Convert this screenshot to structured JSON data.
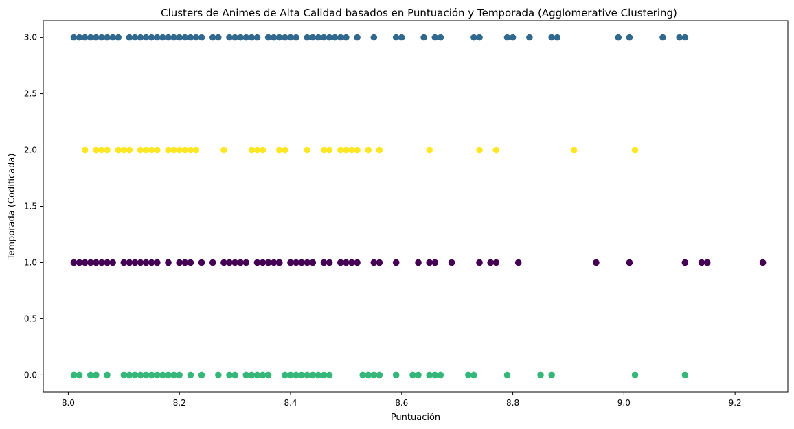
{
  "chart_data": {
    "type": "scatter",
    "title": "Clusters de Animes de Alta Calidad basados en Puntuación y Temporada (Agglomerative Clustering)",
    "xlabel": "Puntuación",
    "ylabel": "Temporada (Codificada)",
    "xlim": [
      7.955,
      9.295
    ],
    "ylim": [
      -0.15,
      3.15
    ],
    "xticks": [
      "8.0",
      "8.2",
      "8.4",
      "8.6",
      "8.8",
      "9.0",
      "9.2"
    ],
    "yticks": [
      "0.0",
      "0.5",
      "1.0",
      "1.5",
      "2.0",
      "2.5",
      "3.0"
    ],
    "grid": false,
    "legend": "none",
    "series": [
      {
        "color": "#31688e",
        "y": 3.0,
        "x": [
          8.01,
          8.02,
          8.03,
          8.04,
          8.05,
          8.06,
          8.07,
          8.08,
          8.09,
          8.11,
          8.12,
          8.13,
          8.14,
          8.15,
          8.16,
          8.17,
          8.18,
          8.19,
          8.2,
          8.21,
          8.22,
          8.23,
          8.24,
          8.26,
          8.27,
          8.29,
          8.3,
          8.31,
          8.32,
          8.33,
          8.34,
          8.36,
          8.37,
          8.38,
          8.39,
          8.4,
          8.41,
          8.43,
          8.44,
          8.45,
          8.46,
          8.47,
          8.48,
          8.49,
          8.5,
          8.52,
          8.55,
          8.59,
          8.6,
          8.64,
          8.66,
          8.67,
          8.73,
          8.74,
          8.79,
          8.8,
          8.83,
          8.87,
          8.88,
          8.99,
          9.01,
          9.07,
          9.1,
          9.11
        ]
      },
      {
        "color": "#fde725",
        "y": 2.0,
        "x": [
          8.03,
          8.05,
          8.06,
          8.07,
          8.09,
          8.1,
          8.11,
          8.13,
          8.14,
          8.15,
          8.16,
          8.18,
          8.19,
          8.2,
          8.21,
          8.22,
          8.23,
          8.28,
          8.33,
          8.34,
          8.35,
          8.38,
          8.39,
          8.43,
          8.46,
          8.47,
          8.49,
          8.5,
          8.51,
          8.52,
          8.54,
          8.56,
          8.65,
          8.74,
          8.77,
          8.91,
          9.02
        ]
      },
      {
        "color": "#440154",
        "y": 1.0,
        "x": [
          8.01,
          8.02,
          8.03,
          8.04,
          8.05,
          8.06,
          8.07,
          8.08,
          8.1,
          8.11,
          8.12,
          8.13,
          8.14,
          8.15,
          8.16,
          8.18,
          8.2,
          8.21,
          8.22,
          8.24,
          8.26,
          8.28,
          8.29,
          8.3,
          8.31,
          8.32,
          8.34,
          8.35,
          8.36,
          8.37,
          8.38,
          8.4,
          8.41,
          8.42,
          8.43,
          8.44,
          8.46,
          8.47,
          8.49,
          8.5,
          8.51,
          8.52,
          8.55,
          8.56,
          8.59,
          8.63,
          8.65,
          8.66,
          8.69,
          8.74,
          8.76,
          8.77,
          8.81,
          8.95,
          9.01,
          9.11,
          9.14,
          9.15,
          9.25
        ]
      },
      {
        "color": "#35b779",
        "y": 0.0,
        "x": [
          8.01,
          8.02,
          8.04,
          8.05,
          8.07,
          8.1,
          8.11,
          8.12,
          8.13,
          8.14,
          8.15,
          8.16,
          8.17,
          8.18,
          8.19,
          8.2,
          8.22,
          8.24,
          8.27,
          8.29,
          8.3,
          8.32,
          8.33,
          8.34,
          8.35,
          8.36,
          8.39,
          8.4,
          8.41,
          8.42,
          8.43,
          8.44,
          8.45,
          8.46,
          8.47,
          8.53,
          8.54,
          8.55,
          8.56,
          8.59,
          8.62,
          8.63,
          8.65,
          8.66,
          8.67,
          8.72,
          8.73,
          8.79,
          8.85,
          8.87,
          9.02,
          9.11
        ]
      }
    ]
  }
}
